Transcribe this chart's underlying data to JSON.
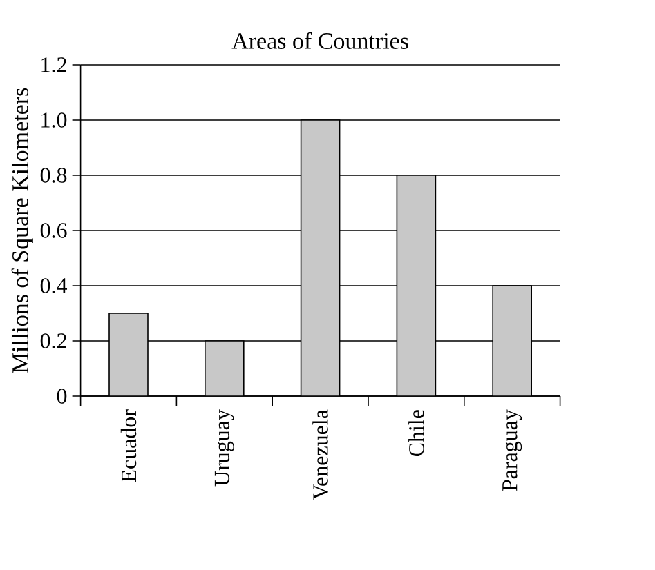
{
  "chart_data": {
    "type": "bar",
    "title": "Areas of Countries",
    "ylabel": "Millions of Square Kilometers",
    "categories": [
      "Ecuador",
      "Uruguay",
      "Venezuela",
      "Chile",
      "Paraguay"
    ],
    "values": [
      0.3,
      0.2,
      1.0,
      0.8,
      0.4
    ],
    "color": "#c8c8c8",
    "ylim": [
      0,
      1.2
    ],
    "yticks": [
      0,
      0.2,
      0.4,
      0.6,
      0.8,
      {
        "value": 1.0,
        "label": "1.0"
      },
      1.2
    ],
    "grid": "y"
  }
}
